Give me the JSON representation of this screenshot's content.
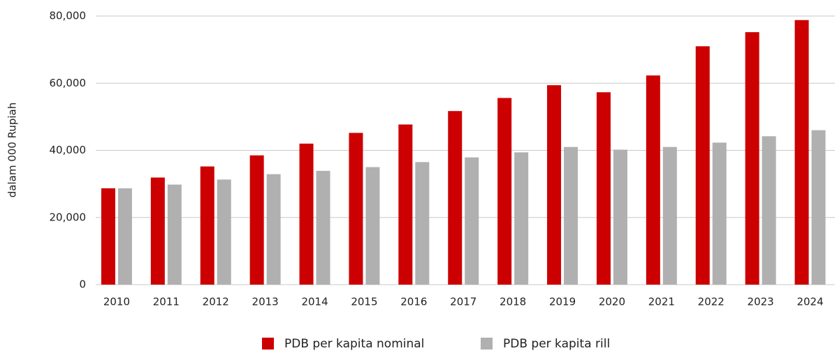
{
  "chart_data": {
    "type": "bar",
    "y_label": "dalam 000 Rupiah",
    "categories": [
      "2010",
      "2011",
      "2012",
      "2013",
      "2014",
      "2015",
      "2016",
      "2017",
      "2018",
      "2019",
      "2020",
      "2021",
      "2022",
      "2023",
      "2024"
    ],
    "series": [
      {
        "name": "PDB per kapita nominal",
        "color": "#cc0000",
        "values": [
          28700,
          31900,
          35200,
          38500,
          42000,
          45200,
          47700,
          51700,
          55600,
          59400,
          57300,
          62300,
          71000,
          75200,
          78800
        ]
      },
      {
        "name": "PDB per kapita rill",
        "color": "#b0b0b0",
        "values": [
          28700,
          29800,
          31300,
          32900,
          33900,
          35000,
          36500,
          37900,
          39400,
          41000,
          40200,
          41000,
          42300,
          44200,
          46000
        ]
      }
    ],
    "ylim": [
      0,
      80000
    ],
    "yticks": [
      0,
      {
        "value": 20000,
        "label": "20,000"
      },
      {
        "value": 40000,
        "label": "40,000"
      },
      {
        "value": 60000,
        "label": "60,000"
      },
      {
        "value": 80000,
        "label": "80,000"
      }
    ],
    "grid": true,
    "legend": "bottom"
  }
}
